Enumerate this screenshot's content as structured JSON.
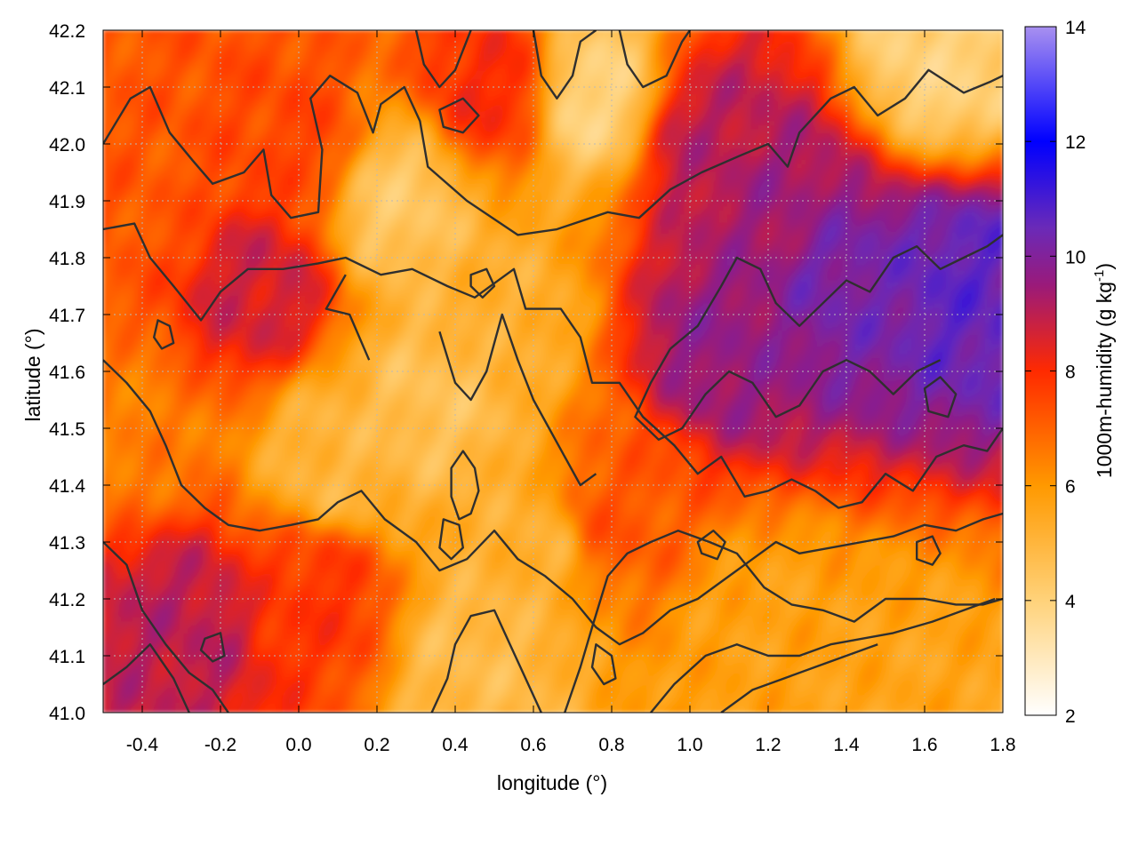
{
  "chart_data": {
    "type": "heatmap",
    "xlabel": "longitude (°)",
    "ylabel": "latitude (°)",
    "colorbar_label": "1000m-humidity (g kg",
    "colorbar_label_sup": "-1",
    "colorbar_label_end": ")",
    "xlim": [
      -0.5,
      1.8
    ],
    "ylim": [
      41.0,
      42.2
    ],
    "clim": [
      2,
      14
    ],
    "x_ticks": [
      -0.4,
      -0.2,
      0.0,
      0.2,
      0.4,
      0.6,
      0.8,
      1.0,
      1.2,
      1.4,
      1.6,
      1.8
    ],
    "x_tick_labels": [
      "-0.4",
      "-0.2",
      "0.0",
      "0.2",
      "0.4",
      "0.6",
      "0.8",
      "1.0",
      "1.2",
      "1.4",
      "1.6",
      "1.8"
    ],
    "y_ticks": [
      41.0,
      41.1,
      41.2,
      41.3,
      41.4,
      41.5,
      41.6,
      41.7,
      41.8,
      41.9,
      42.0,
      42.1,
      42.2
    ],
    "y_tick_labels": [
      "41.0",
      "41.1",
      "41.2",
      "41.3",
      "41.4",
      "41.5",
      "41.6",
      "41.7",
      "41.8",
      "41.9",
      "42.0",
      "42.1",
      "42.2"
    ],
    "colorbar_ticks": [
      2,
      4,
      6,
      8,
      10,
      12,
      14
    ],
    "colorbar_tick_labels": [
      "2",
      "4",
      "6",
      "8",
      "10",
      "12",
      "14"
    ],
    "colormap": [
      {
        "value": 2,
        "color": "#ffffff"
      },
      {
        "value": 4,
        "color": "#ffd27a"
      },
      {
        "value": 6,
        "color": "#ff9900"
      },
      {
        "value": 8,
        "color": "#ff2a00"
      },
      {
        "value": 9.5,
        "color": "#9a1a7a"
      },
      {
        "value": 10.5,
        "color": "#6a2ab8"
      },
      {
        "value": 12,
        "color": "#0000ff"
      },
      {
        "value": 14,
        "color": "#a890f0"
      }
    ],
    "field_centers": [
      {
        "lon": 1.4,
        "lat": 41.75,
        "value": 10.2
      },
      {
        "lon": 1.7,
        "lat": 41.75,
        "value": 10.6
      },
      {
        "lon": 1.1,
        "lat": 41.65,
        "value": 9.6
      },
      {
        "lon": 1.2,
        "lat": 41.9,
        "value": 9.4
      },
      {
        "lon": 1.05,
        "lat": 42.0,
        "value": 9.0
      },
      {
        "lon": -0.1,
        "lat": 41.75,
        "value": 8.7
      },
      {
        "lon": -0.3,
        "lat": 41.15,
        "value": 9.0
      },
      {
        "lon": 0.5,
        "lat": 42.1,
        "value": 8.0
      },
      {
        "lon": 0.0,
        "lat": 42.0,
        "value": 7.5
      },
      {
        "lon": -0.4,
        "lat": 41.9,
        "value": 7.2
      },
      {
        "lon": 0.1,
        "lat": 41.45,
        "value": 5.0
      },
      {
        "lon": 0.35,
        "lat": 41.55,
        "value": 4.6
      },
      {
        "lon": 0.5,
        "lat": 41.7,
        "value": 5.2
      },
      {
        "lon": 0.25,
        "lat": 41.9,
        "value": 4.4
      },
      {
        "lon": 0.6,
        "lat": 41.3,
        "value": 5.2
      },
      {
        "lon": 0.45,
        "lat": 41.1,
        "value": 4.8
      },
      {
        "lon": 1.2,
        "lat": 41.15,
        "value": 5.7
      },
      {
        "lon": 1.55,
        "lat": 41.05,
        "value": 5.6
      },
      {
        "lon": 0.8,
        "lat": 41.35,
        "value": 7.2
      },
      {
        "lon": 1.65,
        "lat": 42.15,
        "value": 4.0
      },
      {
        "lon": 0.75,
        "lat": 42.08,
        "value": 4.0
      },
      {
        "lon": 0.05,
        "lat": 41.2,
        "value": 7.8
      },
      {
        "lon": -0.45,
        "lat": 41.5,
        "value": 6.5
      }
    ],
    "contour_lines": [
      [
        [
          -0.5,
          42.0
        ],
        [
          -0.43,
          42.08
        ],
        [
          -0.38,
          42.1
        ],
        [
          -0.33,
          42.02
        ],
        [
          -0.27,
          41.97
        ],
        [
          -0.22,
          41.93
        ],
        [
          -0.14,
          41.95
        ],
        [
          -0.09,
          41.99
        ],
        [
          -0.07,
          41.91
        ],
        [
          -0.02,
          41.87
        ],
        [
          0.05,
          41.88
        ],
        [
          0.06,
          41.99
        ],
        [
          0.03,
          42.08
        ],
        [
          0.08,
          42.12
        ],
        [
          0.15,
          42.09
        ],
        [
          0.19,
          42.02
        ],
        [
          0.21,
          42.07
        ],
        [
          0.27,
          42.1
        ],
        [
          0.31,
          42.04
        ],
        [
          0.33,
          41.96
        ],
        [
          0.43,
          41.9
        ],
        [
          0.56,
          41.84
        ],
        [
          0.66,
          41.85
        ],
        [
          0.79,
          41.88
        ],
        [
          0.87,
          41.87
        ],
        [
          0.95,
          41.92
        ],
        [
          1.03,
          41.95
        ],
        [
          1.13,
          41.98
        ],
        [
          1.2,
          42.0
        ],
        [
          1.25,
          41.96
        ],
        [
          1.28,
          42.02
        ],
        [
          1.36,
          42.08
        ],
        [
          1.42,
          42.1
        ],
        [
          1.48,
          42.05
        ],
        [
          1.55,
          42.08
        ],
        [
          1.61,
          42.13
        ],
        [
          1.7,
          42.09
        ],
        [
          1.77,
          42.11
        ],
        [
          1.8,
          42.12
        ]
      ],
      [
        [
          -0.5,
          41.85
        ],
        [
          -0.42,
          41.86
        ],
        [
          -0.38,
          41.8
        ],
        [
          -0.32,
          41.75
        ],
        [
          -0.25,
          41.69
        ],
        [
          -0.2,
          41.74
        ],
        [
          -0.13,
          41.78
        ],
        [
          -0.04,
          41.78
        ],
        [
          0.05,
          41.79
        ],
        [
          0.12,
          41.8
        ],
        [
          0.21,
          41.77
        ],
        [
          0.29,
          41.78
        ],
        [
          0.38,
          41.75
        ],
        [
          0.45,
          41.73
        ],
        [
          0.55,
          41.78
        ],
        [
          0.58,
          41.71
        ],
        [
          0.67,
          41.71
        ],
        [
          0.72,
          41.66
        ],
        [
          0.75,
          41.58
        ],
        [
          0.82,
          41.58
        ],
        [
          0.88,
          41.52
        ],
        [
          0.96,
          41.47
        ],
        [
          1.02,
          41.42
        ],
        [
          1.08,
          41.45
        ],
        [
          1.14,
          41.38
        ],
        [
          1.2,
          41.39
        ],
        [
          1.26,
          41.41
        ],
        [
          1.32,
          41.39
        ],
        [
          1.38,
          41.36
        ],
        [
          1.44,
          41.37
        ],
        [
          1.5,
          41.42
        ],
        [
          1.57,
          41.39
        ],
        [
          1.63,
          41.45
        ],
        [
          1.7,
          41.47
        ],
        [
          1.76,
          41.46
        ],
        [
          1.8,
          41.5
        ]
      ],
      [
        [
          -0.5,
          41.62
        ],
        [
          -0.44,
          41.58
        ],
        [
          -0.38,
          41.53
        ],
        [
          -0.34,
          41.47
        ],
        [
          -0.3,
          41.4
        ],
        [
          -0.24,
          41.36
        ],
        [
          -0.18,
          41.33
        ],
        [
          -0.1,
          41.32
        ],
        [
          -0.02,
          41.33
        ],
        [
          0.05,
          41.34
        ],
        [
          0.1,
          41.37
        ],
        [
          0.16,
          41.39
        ],
        [
          0.22,
          41.34
        ],
        [
          0.3,
          41.3
        ],
        [
          0.36,
          41.25
        ],
        [
          0.43,
          41.27
        ],
        [
          0.5,
          41.32
        ],
        [
          0.56,
          41.27
        ],
        [
          0.63,
          41.24
        ],
        [
          0.7,
          41.2
        ],
        [
          0.76,
          41.15
        ],
        [
          0.82,
          41.12
        ],
        [
          0.88,
          41.14
        ],
        [
          0.95,
          41.18
        ],
        [
          1.02,
          41.2
        ],
        [
          1.1,
          41.24
        ],
        [
          1.16,
          41.27
        ],
        [
          1.22,
          41.3
        ],
        [
          1.28,
          41.28
        ],
        [
          1.36,
          41.29
        ],
        [
          1.44,
          41.3
        ],
        [
          1.52,
          41.31
        ],
        [
          1.6,
          41.33
        ],
        [
          1.68,
          41.32
        ],
        [
          1.75,
          41.34
        ],
        [
          1.8,
          41.35
        ]
      ],
      [
        [
          -0.5,
          41.3
        ],
        [
          -0.44,
          41.26
        ],
        [
          -0.4,
          41.18
        ],
        [
          -0.34,
          41.12
        ],
        [
          -0.28,
          41.07
        ],
        [
          -0.22,
          41.04
        ],
        [
          -0.18,
          41.0
        ]
      ],
      [
        [
          -0.5,
          41.05
        ],
        [
          -0.44,
          41.08
        ],
        [
          -0.38,
          41.12
        ],
        [
          -0.32,
          41.06
        ],
        [
          -0.28,
          41.0
        ]
      ],
      [
        [
          0.18,
          41.62
        ],
        [
          0.13,
          41.7
        ],
        [
          0.07,
          41.71
        ],
        [
          0.12,
          41.77
        ]
      ],
      [
        [
          0.34,
          41.0
        ],
        [
          0.38,
          41.06
        ],
        [
          0.4,
          41.12
        ],
        [
          0.44,
          41.17
        ],
        [
          0.5,
          41.18
        ],
        [
          0.54,
          41.12
        ],
        [
          0.58,
          41.06
        ],
        [
          0.62,
          41.0
        ]
      ],
      [
        [
          0.68,
          41.0
        ],
        [
          0.72,
          41.08
        ],
        [
          0.75,
          41.15
        ],
        [
          0.79,
          41.24
        ],
        [
          0.84,
          41.28
        ],
        [
          0.9,
          41.3
        ],
        [
          0.97,
          41.32
        ],
        [
          1.05,
          41.3
        ],
        [
          1.12,
          41.28
        ],
        [
          1.19,
          41.22
        ],
        [
          1.26,
          41.19
        ],
        [
          1.34,
          41.18
        ],
        [
          1.42,
          41.16
        ],
        [
          1.5,
          41.2
        ],
        [
          1.6,
          41.2
        ],
        [
          1.68,
          41.19
        ],
        [
          1.75,
          41.19
        ],
        [
          1.8,
          41.2
        ]
      ],
      [
        [
          0.9,
          41.0
        ],
        [
          0.96,
          41.05
        ],
        [
          1.04,
          41.1
        ],
        [
          1.12,
          41.12
        ],
        [
          1.2,
          41.1
        ],
        [
          1.28,
          41.1
        ],
        [
          1.36,
          41.12
        ],
        [
          1.44,
          41.13
        ],
        [
          1.52,
          41.14
        ],
        [
          1.62,
          41.16
        ],
        [
          1.7,
          41.18
        ],
        [
          1.78,
          41.2
        ]
      ],
      [
        [
          1.08,
          41.0
        ],
        [
          1.16,
          41.04
        ],
        [
          1.24,
          41.06
        ],
        [
          1.32,
          41.08
        ],
        [
          1.4,
          41.1
        ],
        [
          1.48,
          41.12
        ]
      ],
      [
        [
          0.36,
          41.67
        ],
        [
          0.4,
          41.58
        ],
        [
          0.44,
          41.55
        ],
        [
          0.48,
          41.6
        ],
        [
          0.52,
          41.7
        ],
        [
          0.56,
          41.62
        ],
        [
          0.6,
          41.55
        ],
        [
          0.64,
          41.5
        ],
        [
          0.68,
          41.45
        ],
        [
          0.72,
          41.4
        ],
        [
          0.76,
          41.42
        ]
      ],
      [
        [
          0.95,
          41.64
        ],
        [
          1.02,
          41.68
        ],
        [
          1.08,
          41.75
        ],
        [
          1.12,
          41.8
        ],
        [
          1.18,
          41.78
        ],
        [
          1.22,
          41.72
        ],
        [
          1.28,
          41.68
        ],
        [
          1.34,
          41.72
        ],
        [
          1.4,
          41.76
        ],
        [
          1.46,
          41.74
        ],
        [
          1.52,
          41.8
        ],
        [
          1.58,
          41.82
        ],
        [
          1.64,
          41.78
        ],
        [
          1.7,
          41.8
        ],
        [
          1.76,
          41.82
        ],
        [
          1.8,
          41.84
        ]
      ],
      [
        [
          0.95,
          41.64
        ],
        [
          0.9,
          41.58
        ],
        [
          0.86,
          41.52
        ],
        [
          0.92,
          41.48
        ],
        [
          0.98,
          41.5
        ],
        [
          1.04,
          41.56
        ],
        [
          1.1,
          41.6
        ],
        [
          1.16,
          41.58
        ],
        [
          1.22,
          41.52
        ],
        [
          1.28,
          41.54
        ],
        [
          1.34,
          41.6
        ],
        [
          1.4,
          41.62
        ],
        [
          1.46,
          41.6
        ],
        [
          1.52,
          41.56
        ],
        [
          1.58,
          41.6
        ],
        [
          1.64,
          41.62
        ]
      ],
      [
        [
          0.6,
          42.2
        ],
        [
          0.62,
          42.12
        ],
        [
          0.66,
          42.08
        ],
        [
          0.7,
          42.12
        ],
        [
          0.72,
          42.18
        ],
        [
          0.76,
          42.2
        ]
      ],
      [
        [
          0.82,
          42.2
        ],
        [
          0.84,
          42.14
        ],
        [
          0.88,
          42.1
        ],
        [
          0.94,
          42.12
        ],
        [
          0.98,
          42.18
        ],
        [
          1.0,
          42.2
        ]
      ],
      [
        [
          0.3,
          42.2
        ],
        [
          0.32,
          42.14
        ],
        [
          0.36,
          42.1
        ],
        [
          0.4,
          42.13
        ],
        [
          0.44,
          42.2
        ]
      ]
    ],
    "contour_loops": [
      [
        [
          -0.36,
          41.69
        ],
        [
          -0.33,
          41.68
        ],
        [
          -0.32,
          41.65
        ],
        [
          -0.35,
          41.64
        ],
        [
          -0.37,
          41.66
        ]
      ],
      [
        [
          0.42,
          41.46
        ],
        [
          0.45,
          41.43
        ],
        [
          0.46,
          41.39
        ],
        [
          0.44,
          41.35
        ],
        [
          0.41,
          41.34
        ],
        [
          0.39,
          41.38
        ],
        [
          0.39,
          41.43
        ]
      ],
      [
        [
          0.37,
          41.34
        ],
        [
          0.41,
          41.33
        ],
        [
          0.42,
          41.29
        ],
        [
          0.39,
          41.27
        ],
        [
          0.36,
          41.29
        ]
      ],
      [
        [
          0.76,
          41.12
        ],
        [
          0.8,
          41.1
        ],
        [
          0.81,
          41.06
        ],
        [
          0.78,
          41.05
        ],
        [
          0.75,
          41.08
        ]
      ],
      [
        [
          1.02,
          41.3
        ],
        [
          1.06,
          41.32
        ],
        [
          1.09,
          41.3
        ],
        [
          1.07,
          41.27
        ],
        [
          1.03,
          41.28
        ]
      ],
      [
        [
          1.58,
          41.3
        ],
        [
          1.62,
          41.31
        ],
        [
          1.64,
          41.28
        ],
        [
          1.62,
          41.26
        ],
        [
          1.58,
          41.27
        ]
      ],
      [
        [
          -0.24,
          41.13
        ],
        [
          -0.2,
          41.14
        ],
        [
          -0.19,
          41.1
        ],
        [
          -0.22,
          41.09
        ],
        [
          -0.25,
          41.11
        ]
      ],
      [
        [
          0.44,
          41.77
        ],
        [
          0.48,
          41.78
        ],
        [
          0.5,
          41.75
        ],
        [
          0.47,
          41.73
        ],
        [
          0.44,
          41.75
        ]
      ],
      [
        [
          1.6,
          41.57
        ],
        [
          1.64,
          41.59
        ],
        [
          1.68,
          41.56
        ],
        [
          1.66,
          41.52
        ],
        [
          1.61,
          41.53
        ]
      ],
      [
        [
          0.36,
          42.06
        ],
        [
          0.42,
          42.08
        ],
        [
          0.46,
          42.05
        ],
        [
          0.42,
          42.02
        ],
        [
          0.37,
          42.03
        ]
      ]
    ]
  }
}
